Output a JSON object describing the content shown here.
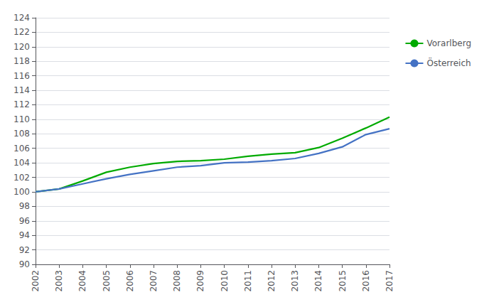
{
  "chart_data": {
    "type": "line",
    "x": [
      2002,
      2003,
      2004,
      2005,
      2006,
      2007,
      2008,
      2009,
      2010,
      2011,
      2012,
      2013,
      2014,
      2015,
      2016,
      2017
    ],
    "series": [
      {
        "name": "Vorarlberg",
        "color": "#00aa00",
        "values": [
          100.0,
          100.4,
          101.5,
          102.7,
          103.4,
          103.9,
          104.2,
          104.3,
          104.5,
          104.9,
          105.2,
          105.4,
          106.1,
          107.4,
          108.8,
          110.3
        ]
      },
      {
        "name": "Österreich",
        "color": "#4472c4",
        "values": [
          100.0,
          100.4,
          101.1,
          101.8,
          102.4,
          102.9,
          103.4,
          103.6,
          104.0,
          104.1,
          104.3,
          104.6,
          105.3,
          106.2,
          107.9,
          108.7
        ]
      }
    ],
    "xlim": [
      2002,
      2017
    ],
    "xticks": [
      2002,
      2003,
      2004,
      2005,
      2006,
      2007,
      2008,
      2009,
      2010,
      2011,
      2012,
      2013,
      2014,
      2015,
      2016,
      2017
    ],
    "ylim": [
      90,
      124
    ],
    "yticks": [
      90,
      92,
      94,
      96,
      98,
      100,
      102,
      104,
      106,
      108,
      110,
      112,
      114,
      116,
      118,
      120,
      122,
      124
    ],
    "grid": true,
    "legend": "right"
  }
}
